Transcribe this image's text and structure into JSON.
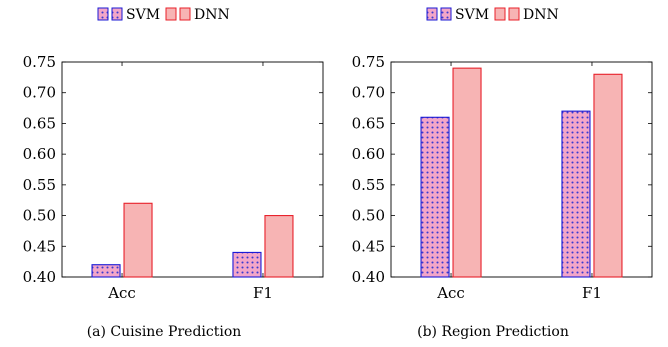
{
  "colors": {
    "svm_stroke": "#1a1ad6",
    "svm_fill": "#f3a6c8",
    "svm_dot": "#3a3ad0",
    "dnn_stroke": "#e8202a",
    "dnn_fill": "#f7b4b4",
    "axis": "#000000"
  },
  "chart_data": [
    {
      "type": "bar",
      "caption": "(a) Cuisine Prediction",
      "categories": [
        "Acc",
        "F1"
      ],
      "series": [
        {
          "name": "SVM",
          "values": [
            0.42,
            0.44
          ]
        },
        {
          "name": "DNN",
          "values": [
            0.52,
            0.5
          ]
        }
      ],
      "ylim": [
        0.4,
        0.75
      ],
      "yticks": [
        "0.40",
        "0.45",
        "0.50",
        "0.55",
        "0.60",
        "0.65",
        "0.70",
        "0.75"
      ],
      "legend": "top-center"
    },
    {
      "type": "bar",
      "caption": "(b) Region Prediction",
      "categories": [
        "Acc",
        "F1"
      ],
      "series": [
        {
          "name": "SVM",
          "values": [
            0.66,
            0.67
          ]
        },
        {
          "name": "DNN",
          "values": [
            0.74,
            0.73
          ]
        }
      ],
      "ylim": [
        0.4,
        0.75
      ],
      "yticks": [
        "0.40",
        "0.45",
        "0.50",
        "0.55",
        "0.60",
        "0.65",
        "0.70",
        "0.75"
      ],
      "legend": "top-center"
    }
  ]
}
